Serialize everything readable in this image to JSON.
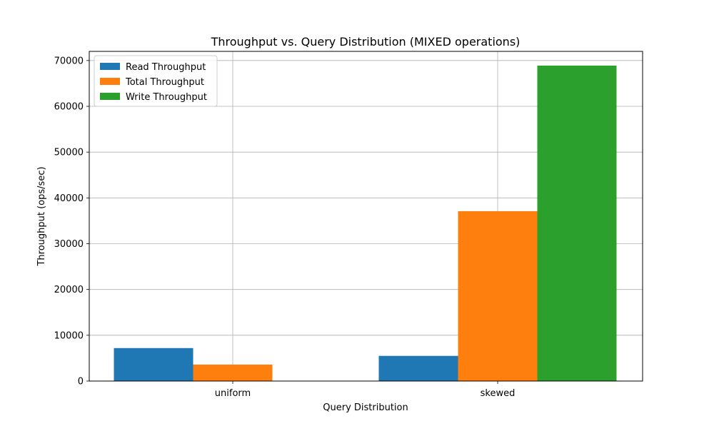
{
  "chart_data": {
    "type": "bar",
    "title": "Throughput vs. Query Distribution (MIXED operations)",
    "xlabel": "Query Distribution",
    "ylabel": "Throughput (ops/sec)",
    "categories": [
      "uniform",
      "skewed"
    ],
    "series": [
      {
        "name": "Read Throughput",
        "color": "#1f77b4",
        "values": [
          7200,
          5500
        ]
      },
      {
        "name": "Total Throughput",
        "color": "#ff7f0e",
        "values": [
          3600,
          37100
        ]
      },
      {
        "name": "Write Throughput",
        "color": "#2ca02c",
        "values": [
          0,
          68900
        ]
      }
    ],
    "ylim": [
      0,
      72000
    ],
    "yticks": [
      "0",
      "10000",
      "20000",
      "30000",
      "40000",
      "50000",
      "60000",
      "70000"
    ],
    "grid": true,
    "legend_position": "top-left"
  }
}
